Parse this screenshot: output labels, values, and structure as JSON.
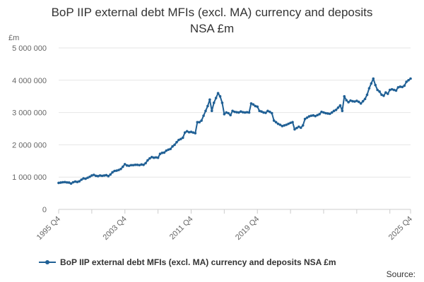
{
  "chart_data": {
    "type": "line",
    "title_line1": "BoP IIP external debt MFIs (excl. MA) currency and deposits",
    "title_line2": "NSA £m",
    "unit_label": "£m",
    "source_label": "Source:",
    "x_tick_labels": [
      "1995 Q4",
      "2003 Q4",
      "2011 Q4",
      "2019 Q4",
      "2025 Q4"
    ],
    "y_tick_labels": [
      "0",
      "1 000 000",
      "2 000 000",
      "3 000 000",
      "4 000 000",
      "5 000 000"
    ],
    "y_ticks": [
      0,
      1000000,
      2000000,
      3000000,
      4000000,
      5000000
    ],
    "ylim": [
      0,
      5000000
    ],
    "x_start": "1995 Q4",
    "x_end": "2025 Q4",
    "grid": "horizontal",
    "legend_position": "bottom",
    "color": "#206095",
    "series": [
      {
        "name": "BoP IIP external debt MFIs (excl. MA) currency and deposits NSA £m",
        "values": [
          820000,
          830000,
          840000,
          845000,
          835000,
          830000,
          800000,
          840000,
          860000,
          850000,
          870000,
          920000,
          960000,
          950000,
          980000,
          1010000,
          1050000,
          1070000,
          1040000,
          1030000,
          1050000,
          1040000,
          1050000,
          1060000,
          1030000,
          1080000,
          1150000,
          1190000,
          1200000,
          1220000,
          1250000,
          1320000,
          1400000,
          1360000,
          1350000,
          1370000,
          1370000,
          1380000,
          1380000,
          1370000,
          1390000,
          1380000,
          1430000,
          1520000,
          1580000,
          1620000,
          1600000,
          1610000,
          1600000,
          1720000,
          1750000,
          1760000,
          1820000,
          1850000,
          1870000,
          1950000,
          2000000,
          2080000,
          2150000,
          2180000,
          2220000,
          2380000,
          2420000,
          2390000,
          2400000,
          2380000,
          2360000,
          2700000,
          2700000,
          2750000,
          2900000,
          3050000,
          3200000,
          3400000,
          3050000,
          3300000,
          3450000,
          3600000,
          3500000,
          3300000,
          2950000,
          3000000,
          2980000,
          2920000,
          3050000,
          3020000,
          3010000,
          3000000,
          3030000,
          3010000,
          3000000,
          3010000,
          3000000,
          3280000,
          3250000,
          3200000,
          3180000,
          3050000,
          3030000,
          3000000,
          2990000,
          3050000,
          3020000,
          2980000,
          2750000,
          2700000,
          2650000,
          2620000,
          2580000,
          2600000,
          2620000,
          2650000,
          2680000,
          2700000,
          2480000,
          2520000,
          2560000,
          2530000,
          2600000,
          2800000,
          2840000,
          2880000,
          2900000,
          2910000,
          2890000,
          2920000,
          2950000,
          3020000,
          3000000,
          2980000,
          2970000,
          2960000,
          3000000,
          3050000,
          3080000,
          3150000,
          3220000,
          3050000,
          3500000,
          3380000,
          3320000,
          3370000,
          3350000,
          3340000,
          3360000,
          3330000,
          3280000,
          3350000,
          3420000,
          3550000,
          3750000,
          3900000,
          4050000,
          3850000,
          3700000,
          3650000,
          3550000,
          3520000,
          3620000,
          3580000,
          3700000,
          3720000,
          3700000,
          3680000,
          3780000,
          3800000,
          3790000,
          3830000,
          3950000,
          4000000,
          4050000
        ]
      }
    ]
  }
}
